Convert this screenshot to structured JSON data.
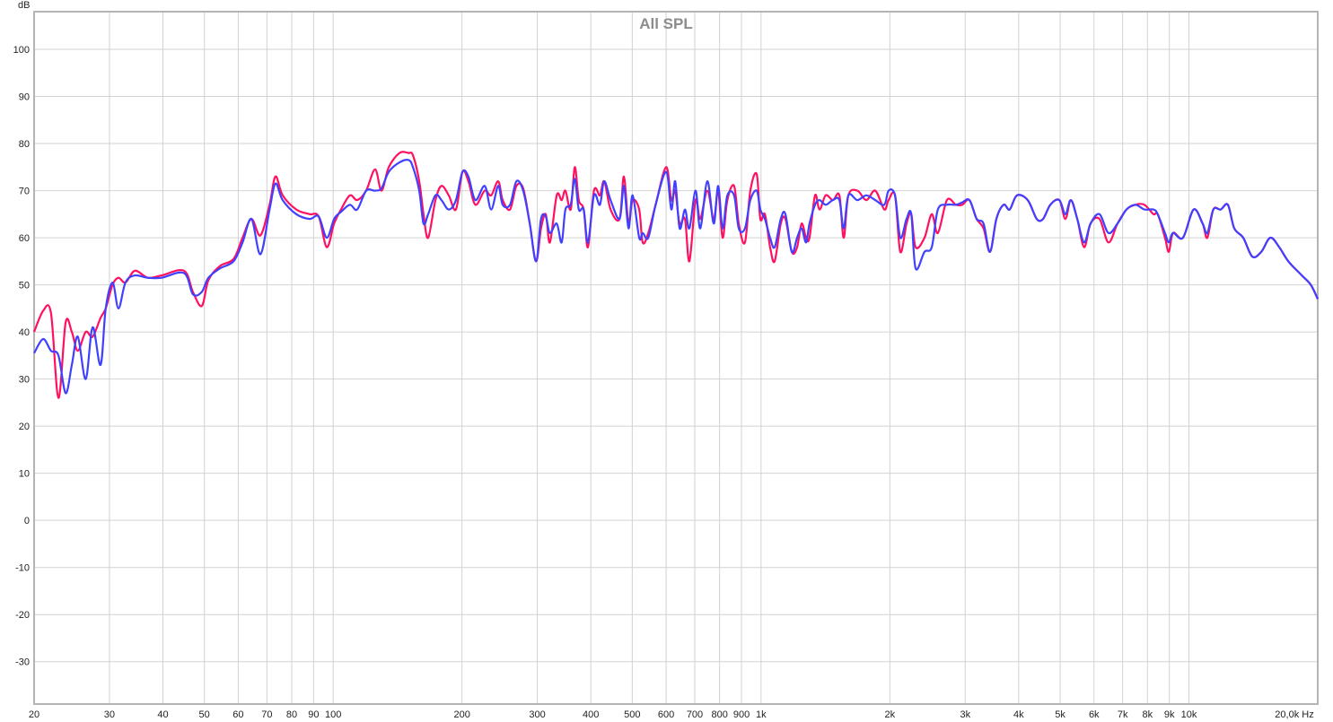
{
  "chart_data": {
    "type": "line",
    "title": "All SPL",
    "ylabel": "dB",
    "xlabel": "Hz",
    "x_scale": "log",
    "xlim": [
      20,
      20000
    ],
    "ylim": [
      -39,
      108
    ],
    "grid": true,
    "y_ticks": [
      -30,
      -20,
      -10,
      0,
      10,
      20,
      30,
      40,
      50,
      60,
      70,
      80,
      90,
      100
    ],
    "x_ticks": [
      {
        "v": 20,
        "label": "20"
      },
      {
        "v": 30,
        "label": "30"
      },
      {
        "v": 40,
        "label": "40"
      },
      {
        "v": 50,
        "label": "50"
      },
      {
        "v": 60,
        "label": "60"
      },
      {
        "v": 70,
        "label": "70"
      },
      {
        "v": 80,
        "label": "80"
      },
      {
        "v": 90,
        "label": "90"
      },
      {
        "v": 100,
        "label": "100"
      },
      {
        "v": 200,
        "label": "200"
      },
      {
        "v": 300,
        "label": "300"
      },
      {
        "v": 400,
        "label": "400"
      },
      {
        "v": 500,
        "label": "500"
      },
      {
        "v": 600,
        "label": "600"
      },
      {
        "v": 700,
        "label": "700"
      },
      {
        "v": 800,
        "label": "800"
      },
      {
        "v": 900,
        "label": "900"
      },
      {
        "v": 1000,
        "label": "1k"
      },
      {
        "v": 2000,
        "label": "2k"
      },
      {
        "v": 3000,
        "label": "3k"
      },
      {
        "v": 4000,
        "label": "4k"
      },
      {
        "v": 5000,
        "label": "5k"
      },
      {
        "v": 6000,
        "label": "6k"
      },
      {
        "v": 7000,
        "label": "7k"
      },
      {
        "v": 8000,
        "label": "8k"
      },
      {
        "v": 9000,
        "label": "9k"
      },
      {
        "v": 10000,
        "label": "10k"
      },
      {
        "v": 20000,
        "label": "20,0k Hz"
      }
    ],
    "x": [
      20,
      21,
      21.9,
      22.8,
      23.7,
      24.5,
      25.3,
      26.4,
      27.4,
      28.6,
      29.4,
      30.5,
      31.5,
      32.7,
      34.4,
      36.9,
      39.7,
      44.8,
      47,
      49.3,
      51.1,
      54.4,
      58.5,
      61.4,
      64.4,
      67.6,
      71,
      73.3,
      76.2,
      82,
      88.1,
      92.5,
      96.6,
      100.5,
      104.3,
      109.4,
      113.8,
      119.4,
      125.3,
      129.7,
      134.9,
      142.9,
      150,
      153.6,
      158.9,
      162.6,
      166.7,
      173.4,
      179.1,
      186.2,
      193.6,
      200.5,
      207,
      215,
      226,
      234,
      243,
      249,
      259,
      268,
      278,
      288,
      298,
      306,
      314,
      321,
      333,
      342,
      349,
      359,
      367,
      375,
      385,
      394,
      407,
      420,
      430,
      445,
      467,
      478,
      490,
      501,
      519,
      529,
      545,
      567,
      600,
      617,
      630,
      645,
      664,
      680,
      703,
      721,
      749,
      775,
      794,
      813,
      834,
      865,
      887,
      917,
      944,
      977,
      996,
      1021,
      1050,
      1076,
      1112,
      1140,
      1180,
      1214,
      1244,
      1274,
      1298,
      1337,
      1370,
      1416,
      1472,
      1524,
      1560,
      1600,
      1679,
      1762,
      1849,
      1941,
      1986,
      2056,
      2115,
      2188,
      2244,
      2297,
      2410,
      2506,
      2590,
      2719,
      2853,
      2953,
      3069,
      3191,
      3311,
      3428,
      3548,
      3690,
      3811,
      3963,
      4200,
      4408,
      4562,
      4744,
      4978,
      5142,
      5297,
      5483,
      5689,
      5888,
      6180,
      6486,
      6808,
      7145,
      7499,
      7871,
      8261,
      8454,
      8790,
      8974,
      9183,
      9683,
      10256,
      10765,
      11041,
      11404,
      11860,
      12332,
      12764,
      13397,
      14062,
      14759,
      15491,
      16260,
      17066,
      18360,
      19270,
      20000
    ],
    "series": [
      {
        "color": "#ff1060",
        "values": [
          40,
          44.5,
          44,
          26,
          42,
          40,
          36,
          40,
          39,
          43,
          45,
          50,
          51.5,
          50.5,
          53,
          51.5,
          52,
          53,
          48.5,
          45.5,
          51,
          54,
          55.5,
          60,
          64,
          60.5,
          67,
          73,
          69,
          66,
          65,
          64.5,
          58,
          63,
          66,
          69,
          68,
          70,
          74.5,
          70,
          75,
          78,
          78,
          77.5,
          72,
          65,
          60,
          68,
          71,
          69,
          66,
          74,
          72,
          67,
          70,
          69,
          72,
          68,
          66,
          71,
          70.5,
          63,
          55,
          62,
          65,
          59,
          69,
          68,
          70,
          66,
          75,
          68,
          66,
          58,
          70,
          69,
          72,
          66,
          64,
          73,
          63,
          68,
          66,
          59,
          61,
          67,
          75,
          68,
          70,
          63,
          64,
          55,
          68,
          64,
          70,
          64,
          70,
          60,
          68,
          71,
          63,
          59,
          70,
          73.5,
          64,
          65,
          58,
          55,
          63,
          64,
          57,
          58,
          63,
          60,
          60,
          69,
          66,
          69,
          68,
          69,
          60,
          69,
          70,
          68,
          70,
          66,
          68,
          69,
          57,
          63,
          65,
          58,
          60,
          65,
          61,
          68,
          67,
          67,
          68,
          64,
          62,
          57,
          64,
          67,
          66,
          69,
          68,
          64,
          64,
          67,
          68,
          64,
          68,
          64,
          58,
          63,
          64,
          59,
          63,
          66,
          67,
          67,
          65,
          65,
          60,
          57,
          61,
          60,
          66,
          63,
          60,
          66,
          66,
          67,
          62,
          60,
          56,
          57,
          60,
          58,
          55,
          52,
          50,
          47
        ]
      },
      {
        "color": "#4040ff",
        "values": [
          35.5,
          38.5,
          36,
          35,
          27,
          33,
          39,
          30,
          41,
          33,
          45,
          50.5,
          45,
          50.5,
          52,
          51.5,
          51.5,
          52.5,
          48,
          48.5,
          51.5,
          53.5,
          55,
          59,
          64,
          56.5,
          66,
          71.5,
          68,
          65,
          64,
          64.5,
          60,
          64,
          65.5,
          67,
          66,
          70,
          70,
          70.5,
          74,
          76,
          76.5,
          75,
          70,
          63,
          65,
          69,
          68,
          66,
          68,
          74,
          73,
          68,
          71,
          66,
          71,
          67,
          67,
          72,
          70,
          63,
          55,
          64,
          64.5,
          61,
          63,
          59,
          66,
          67,
          72.5,
          66,
          66,
          59,
          69,
          67,
          72,
          68,
          64,
          71,
          62,
          69,
          60,
          61,
          60,
          67,
          74,
          66,
          72,
          62,
          66,
          62,
          70,
          62,
          72,
          63,
          71,
          62,
          69,
          69,
          62,
          62,
          68,
          70,
          66,
          64,
          60,
          58,
          64,
          65,
          57,
          60,
          62,
          59,
          63,
          67,
          68,
          67,
          68,
          68,
          62,
          69,
          68,
          69,
          68,
          67,
          70,
          69,
          60,
          64,
          65,
          53.5,
          57,
          58,
          66,
          67,
          67,
          67.5,
          68,
          64,
          63,
          57,
          64,
          67,
          66,
          69,
          68,
          64,
          64,
          67,
          68,
          65,
          68,
          64,
          59,
          63,
          65,
          61,
          63,
          66,
          67,
          66,
          66,
          65,
          61,
          59,
          61,
          60,
          66,
          63,
          61,
          66,
          66,
          67,
          62,
          60,
          56,
          57,
          60,
          58,
          55,
          52,
          50,
          47
        ]
      }
    ]
  }
}
